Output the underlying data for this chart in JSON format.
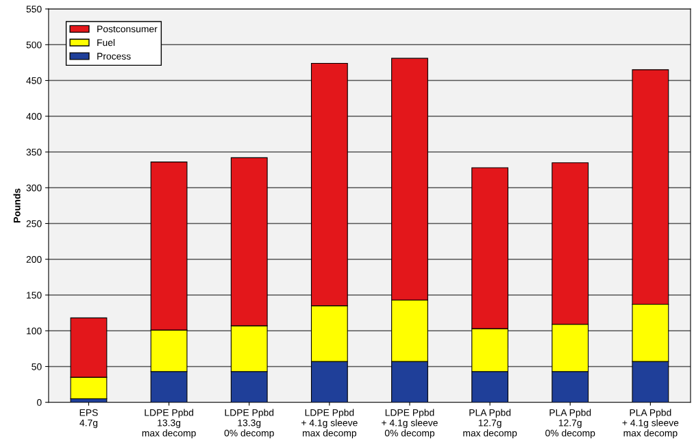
{
  "chart_data": {
    "type": "bar",
    "stacked": true,
    "ylabel": "Pounds",
    "categories": [
      "EPS\n4.7g",
      "LDPE Ppbd\n13.3g\nmax decomp",
      "LDPE Ppbd\n13.3g\n0% decomp",
      "LDPE Ppbd\n+ 4.1g sleeve\nmax decomp",
      "LDPE Ppbd\n+ 4.1g sleeve\n0% decomp",
      "PLA Ppbd\n12.7g\nmax decomp",
      "PLA Ppbd\n12.7g\n0% decomp",
      "PLA Ppbd\n+ 4.1g sleeve\nmax decomp"
    ],
    "series": [
      {
        "name": "Process",
        "color": "#1f3f99",
        "values": [
          5,
          43,
          43,
          57,
          57,
          43,
          43,
          57
        ]
      },
      {
        "name": "Fuel",
        "color": "#ffff00",
        "values": [
          30,
          58,
          64,
          78,
          86,
          60,
          66,
          80
        ]
      },
      {
        "name": "Postconsumer",
        "color": "#e3171b",
        "values": [
          83,
          235,
          235,
          339,
          338,
          225,
          226,
          328
        ]
      }
    ],
    "ylim": [
      0,
      550
    ],
    "yticks": [
      0,
      50,
      100,
      150,
      200,
      250,
      300,
      350,
      400,
      450,
      500,
      550
    ],
    "grid": "y",
    "legend": "top left"
  }
}
